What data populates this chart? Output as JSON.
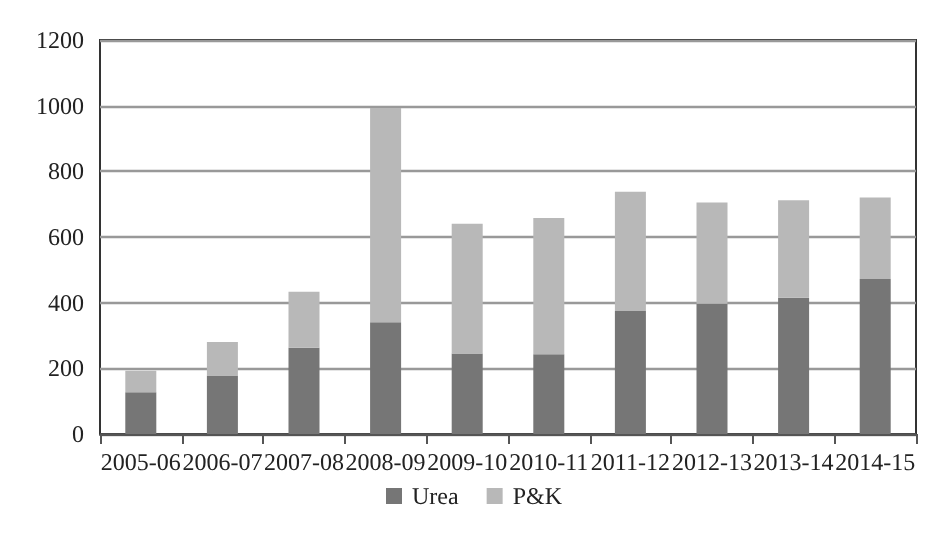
{
  "chart_data": {
    "type": "bar",
    "stacked": true,
    "categories": [
      "2005-06",
      "2006-07",
      "2007-08",
      "2008-09",
      "2009-10",
      "2010-11",
      "2011-12",
      "2012-13",
      "2013-14",
      "2014-15"
    ],
    "series": [
      {
        "name": "Urea",
        "color": "#767676",
        "values": [
          127,
          178,
          263,
          340,
          245,
          243,
          375,
          397,
          415,
          472
        ]
      },
      {
        "name": "P&K",
        "color": "#b8b8b8",
        "values": [
          66,
          102,
          170,
          653,
          395,
          415,
          363,
          308,
          297,
          248
        ]
      }
    ],
    "ylim": [
      0,
      1200
    ],
    "yticks": [
      0,
      200,
      400,
      600,
      800,
      1000,
      1200
    ],
    "grid": "y",
    "legend": "bottom"
  }
}
